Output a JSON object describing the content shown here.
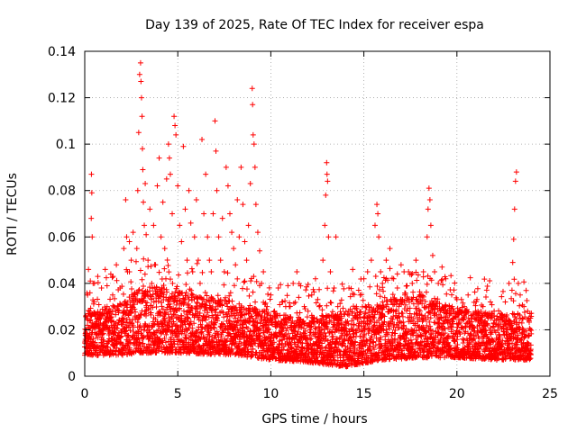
{
  "chart_data": {
    "type": "scatter",
    "title": "Day 139 of 2025, Rate Of TEC Index for receiver espa",
    "xlabel": "GPS time / hours",
    "ylabel": "ROTI / TECUs",
    "xlim": [
      0,
      25
    ],
    "ylim": [
      0,
      0.14
    ],
    "xticks": [
      0,
      5,
      10,
      15,
      20,
      25
    ],
    "xtick_labels": [
      "0",
      "5",
      "10",
      "15",
      "20",
      "25"
    ],
    "yticks": [
      0,
      0.02,
      0.04,
      0.06,
      0.08,
      0.1,
      0.12,
      0.14
    ],
    "ytick_labels": [
      "0",
      "0.02",
      "0.04",
      "0.06",
      "0.08",
      "0.1",
      "0.12",
      "0.14"
    ],
    "grid": true,
    "marker": "+",
    "series": [
      {
        "name": "ROTI",
        "color": "#ff0000",
        "points": [
          [
            0.05,
            0.01
          ],
          [
            0.1,
            0.012
          ],
          [
            0.15,
            0.035
          ],
          [
            0.2,
            0.046
          ],
          [
            0.25,
            0.028
          ],
          [
            0.3,
            0.041
          ],
          [
            0.35,
            0.068
          ],
          [
            0.36,
            0.087
          ],
          [
            0.38,
            0.079
          ],
          [
            0.4,
            0.06
          ],
          [
            0.45,
            0.04
          ],
          [
            0.5,
            0.032
          ],
          [
            0.6,
            0.018
          ],
          [
            0.7,
            0.043
          ],
          [
            0.8,
            0.025
          ],
          [
            0.9,
            0.038
          ],
          [
            1.0,
            0.02
          ],
          [
            1.1,
            0.046
          ],
          [
            1.2,
            0.03
          ],
          [
            1.3,
            0.015
          ],
          [
            1.4,
            0.044
          ],
          [
            1.5,
            0.035
          ],
          [
            1.6,
            0.022
          ],
          [
            1.7,
            0.048
          ],
          [
            1.8,
            0.03
          ],
          [
            1.9,
            0.038
          ],
          [
            2.0,
            0.025
          ],
          [
            2.1,
            0.055
          ],
          [
            2.2,
            0.076
          ],
          [
            2.25,
            0.06
          ],
          [
            2.3,
            0.045
          ],
          [
            2.4,
            0.058
          ],
          [
            2.5,
            0.05
          ],
          [
            2.6,
            0.062
          ],
          [
            2.7,
            0.035
          ],
          [
            2.8,
            0.055
          ],
          [
            2.85,
            0.08
          ],
          [
            2.9,
            0.105
          ],
          [
            2.95,
            0.13
          ],
          [
            3.0,
            0.135
          ],
          [
            3.02,
            0.127
          ],
          [
            3.05,
            0.12
          ],
          [
            3.08,
            0.112
          ],
          [
            3.1,
            0.098
          ],
          [
            3.12,
            0.089
          ],
          [
            3.15,
            0.075
          ],
          [
            3.2,
            0.065
          ],
          [
            3.25,
            0.083
          ],
          [
            3.3,
            0.061
          ],
          [
            3.4,
            0.05
          ],
          [
            3.5,
            0.072
          ],
          [
            3.6,
            0.04
          ],
          [
            3.7,
            0.065
          ],
          [
            3.8,
            0.048
          ],
          [
            3.9,
            0.082
          ],
          [
            4.0,
            0.094
          ],
          [
            4.1,
            0.06
          ],
          [
            4.2,
            0.075
          ],
          [
            4.3,
            0.055
          ],
          [
            4.4,
            0.085
          ],
          [
            4.5,
            0.1
          ],
          [
            4.55,
            0.094
          ],
          [
            4.6,
            0.087
          ],
          [
            4.7,
            0.07
          ],
          [
            4.8,
            0.112
          ],
          [
            4.85,
            0.108
          ],
          [
            4.9,
            0.104
          ],
          [
            5.0,
            0.082
          ],
          [
            5.1,
            0.065
          ],
          [
            5.2,
            0.058
          ],
          [
            5.3,
            0.099
          ],
          [
            5.4,
            0.072
          ],
          [
            5.5,
            0.05
          ],
          [
            5.6,
            0.08
          ],
          [
            5.7,
            0.066
          ],
          [
            5.8,
            0.045
          ],
          [
            5.9,
            0.06
          ],
          [
            6.0,
            0.076
          ],
          [
            6.1,
            0.05
          ],
          [
            6.2,
            0.04
          ],
          [
            6.3,
            0.102
          ],
          [
            6.4,
            0.07
          ],
          [
            6.5,
            0.087
          ],
          [
            6.6,
            0.06
          ],
          [
            6.7,
            0.05
          ],
          [
            6.8,
            0.045
          ],
          [
            6.9,
            0.07
          ],
          [
            7.0,
            0.11
          ],
          [
            7.05,
            0.097
          ],
          [
            7.1,
            0.08
          ],
          [
            7.2,
            0.06
          ],
          [
            7.3,
            0.05
          ],
          [
            7.4,
            0.068
          ],
          [
            7.5,
            0.045
          ],
          [
            7.6,
            0.09
          ],
          [
            7.7,
            0.082
          ],
          [
            7.8,
            0.07
          ],
          [
            7.9,
            0.062
          ],
          [
            8.0,
            0.055
          ],
          [
            8.1,
            0.048
          ],
          [
            8.2,
            0.076
          ],
          [
            8.3,
            0.06
          ],
          [
            8.4,
            0.09
          ],
          [
            8.5,
            0.074
          ],
          [
            8.6,
            0.058
          ],
          [
            8.7,
            0.05
          ],
          [
            8.8,
            0.065
          ],
          [
            8.9,
            0.083
          ],
          [
            9.0,
            0.124
          ],
          [
            9.02,
            0.117
          ],
          [
            9.05,
            0.104
          ],
          [
            9.1,
            0.1
          ],
          [
            9.15,
            0.09
          ],
          [
            9.2,
            0.074
          ],
          [
            9.3,
            0.062
          ],
          [
            9.4,
            0.054
          ],
          [
            9.5,
            0.04
          ],
          [
            9.6,
            0.045
          ],
          [
            9.8,
            0.03
          ],
          [
            10.0,
            0.035
          ],
          [
            10.2,
            0.028
          ],
          [
            10.4,
            0.038
          ],
          [
            10.6,
            0.032
          ],
          [
            10.8,
            0.025
          ],
          [
            11.0,
            0.03
          ],
          [
            11.2,
            0.04
          ],
          [
            11.4,
            0.045
          ],
          [
            11.5,
            0.034
          ],
          [
            11.8,
            0.03
          ],
          [
            12.0,
            0.028
          ],
          [
            12.2,
            0.035
          ],
          [
            12.4,
            0.042
          ],
          [
            12.6,
            0.03
          ],
          [
            12.8,
            0.05
          ],
          [
            12.9,
            0.065
          ],
          [
            12.95,
            0.078
          ],
          [
            13.0,
            0.092
          ],
          [
            13.02,
            0.087
          ],
          [
            13.05,
            0.084
          ],
          [
            13.1,
            0.06
          ],
          [
            13.2,
            0.045
          ],
          [
            13.4,
            0.038
          ],
          [
            13.5,
            0.06
          ],
          [
            13.6,
            0.03
          ],
          [
            13.8,
            0.025
          ],
          [
            14.0,
            0.022
          ],
          [
            14.2,
            0.038
          ],
          [
            14.4,
            0.046
          ],
          [
            14.6,
            0.03
          ],
          [
            14.8,
            0.035
          ],
          [
            15.0,
            0.042
          ],
          [
            15.2,
            0.045
          ],
          [
            15.4,
            0.05
          ],
          [
            15.6,
            0.065
          ],
          [
            15.7,
            0.074
          ],
          [
            15.75,
            0.07
          ],
          [
            15.8,
            0.06
          ],
          [
            15.9,
            0.045
          ],
          [
            16.0,
            0.04
          ],
          [
            16.2,
            0.05
          ],
          [
            16.4,
            0.055
          ],
          [
            16.6,
            0.042
          ],
          [
            16.8,
            0.038
          ],
          [
            17.0,
            0.048
          ],
          [
            17.2,
            0.035
          ],
          [
            17.4,
            0.045
          ],
          [
            17.6,
            0.04
          ],
          [
            17.8,
            0.05
          ],
          [
            18.0,
            0.035
          ],
          [
            18.2,
            0.045
          ],
          [
            18.4,
            0.06
          ],
          [
            18.45,
            0.072
          ],
          [
            18.5,
            0.081
          ],
          [
            18.55,
            0.076
          ],
          [
            18.6,
            0.065
          ],
          [
            18.7,
            0.052
          ],
          [
            18.8,
            0.045
          ],
          [
            19.0,
            0.04
          ],
          [
            19.2,
            0.047
          ],
          [
            19.4,
            0.042
          ],
          [
            19.6,
            0.03
          ],
          [
            19.8,
            0.025
          ],
          [
            20.0,
            0.033
          ],
          [
            20.2,
            0.028
          ],
          [
            20.4,
            0.03
          ],
          [
            20.6,
            0.035
          ],
          [
            20.8,
            0.025
          ],
          [
            21.0,
            0.028
          ],
          [
            21.2,
            0.022
          ],
          [
            21.4,
            0.03
          ],
          [
            21.6,
            0.026
          ],
          [
            21.8,
            0.032
          ],
          [
            22.0,
            0.028
          ],
          [
            22.2,
            0.022
          ],
          [
            22.4,
            0.026
          ],
          [
            22.6,
            0.032
          ],
          [
            22.8,
            0.04
          ],
          [
            23.0,
            0.049
          ],
          [
            23.05,
            0.059
          ],
          [
            23.1,
            0.072
          ],
          [
            23.15,
            0.084
          ],
          [
            23.2,
            0.088
          ],
          [
            23.3,
            0.04
          ],
          [
            23.4,
            0.035
          ],
          [
            23.6,
            0.03
          ],
          [
            23.8,
            0.028
          ],
          [
            23.95,
            0.025
          ]
        ],
        "dense_band": [
          [
            0.0,
            0.009,
            0.022
          ],
          [
            2.0,
            0.009,
            0.026
          ],
          [
            3.0,
            0.01,
            0.032
          ],
          [
            5.0,
            0.01,
            0.03
          ],
          [
            8.0,
            0.009,
            0.026
          ],
          [
            10.0,
            0.007,
            0.022
          ],
          [
            12.0,
            0.006,
            0.02
          ],
          [
            14.0,
            0.004,
            0.022
          ],
          [
            16.0,
            0.007,
            0.026
          ],
          [
            18.0,
            0.008,
            0.028
          ],
          [
            20.0,
            0.008,
            0.024
          ],
          [
            22.0,
            0.007,
            0.022
          ],
          [
            24.0,
            0.007,
            0.022
          ]
        ]
      }
    ]
  }
}
